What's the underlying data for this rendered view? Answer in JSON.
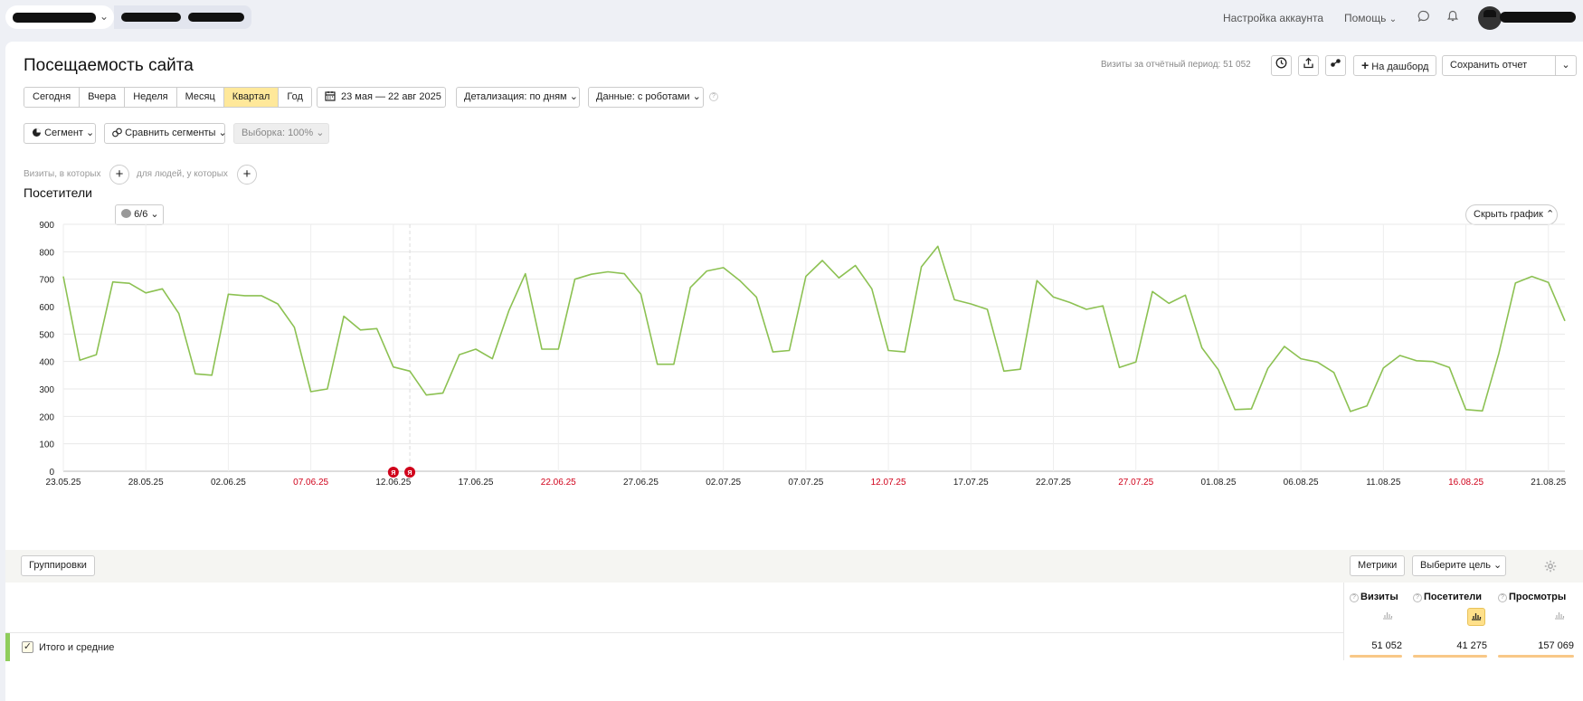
{
  "topbar": {
    "account_settings": "Настройка аккаунта",
    "help": "Помощь"
  },
  "header": {
    "title": "Посещаемость сайта",
    "visits_total": "Визиты за отчётный период: 51 052",
    "dashboard_button": "На дашборд",
    "save_report_button": "Сохранить отчет"
  },
  "periods": [
    {
      "label": "Сегодня",
      "active": false
    },
    {
      "label": "Вчера",
      "active": false
    },
    {
      "label": "Неделя",
      "active": false
    },
    {
      "label": "Месяц",
      "active": false
    },
    {
      "label": "Квартал",
      "active": true
    },
    {
      "label": "Год",
      "active": false
    }
  ],
  "filters": {
    "date_range": "23 мая — 22 авг 2025",
    "detail": "Детализация: по дням",
    "data": "Данные: с роботами",
    "segment": "Сегмент",
    "compare": "Сравнить сегменты",
    "sample": "Выборка: 100%",
    "visits_where": "Визиты, в которых",
    "people_where": "для людей, у которых"
  },
  "chart_section": {
    "title": "Посетители",
    "counter": "6/6",
    "hide_button": "Скрыть график"
  },
  "chart_data": {
    "type": "line",
    "xlabel": "",
    "ylabel": "",
    "ylim": [
      0,
      900
    ],
    "yticks": [
      "900",
      "800",
      "700",
      "600",
      "500",
      "400",
      "300",
      "200",
      "100",
      "0"
    ],
    "x_tick_labels": [
      {
        "label": "23.05.25",
        "weekend": false
      },
      {
        "label": "28.05.25",
        "weekend": false
      },
      {
        "label": "02.06.25",
        "weekend": false
      },
      {
        "label": "07.06.25",
        "weekend": true
      },
      {
        "label": "12.06.25",
        "weekend": false
      },
      {
        "label": "17.06.25",
        "weekend": false
      },
      {
        "label": "22.06.25",
        "weekend": true
      },
      {
        "label": "27.06.25",
        "weekend": false
      },
      {
        "label": "02.07.25",
        "weekend": false
      },
      {
        "label": "07.07.25",
        "weekend": false
      },
      {
        "label": "12.07.25",
        "weekend": true
      },
      {
        "label": "17.07.25",
        "weekend": false
      },
      {
        "label": "22.07.25",
        "weekend": false
      },
      {
        "label": "27.07.25",
        "weekend": true
      },
      {
        "label": "01.08.25",
        "weekend": false
      },
      {
        "label": "06.08.25",
        "weekend": false
      },
      {
        "label": "11.08.25",
        "weekend": false
      },
      {
        "label": "16.08.25",
        "weekend": true
      },
      {
        "label": "21.08.25",
        "weekend": false
      }
    ],
    "markers": [
      {
        "day_index": 20,
        "label": "Я"
      },
      {
        "day_index": 21,
        "label": "Я"
      }
    ],
    "series": [
      {
        "color": "#8cc152",
        "values": [
          710,
          405,
          425,
          690,
          685,
          650,
          665,
          575,
          355,
          350,
          645,
          640,
          640,
          610,
          525,
          290,
          300,
          565,
          515,
          520,
          380,
          365,
          278,
          285,
          425,
          445,
          410,
          585,
          720,
          445,
          445,
          700,
          718,
          727,
          720,
          645,
          390,
          390,
          670,
          730,
          742,
          695,
          635,
          435,
          440,
          710,
          768,
          705,
          750,
          665,
          440,
          435,
          745,
          820,
          625,
          610,
          590,
          365,
          372,
          695,
          635,
          615,
          590,
          603,
          378,
          398,
          655,
          612,
          642,
          450,
          370,
          225,
          227,
          375,
          455,
          410,
          398,
          360,
          218,
          238,
          376,
          422,
          403,
          400,
          378,
          225,
          220,
          430,
          686,
          710,
          688,
          548
        ]
      }
    ]
  },
  "table": {
    "groupings_button": "Группировки",
    "metrics_button": "Метрики",
    "goal_button": "Выберите цель",
    "columns": [
      {
        "label": "Визиты",
        "total": "51 052"
      },
      {
        "label": "Посетители",
        "total": "41 275"
      },
      {
        "label": "Просмотры",
        "total": "157 069"
      }
    ],
    "total_row_label": "Итого и средние"
  }
}
